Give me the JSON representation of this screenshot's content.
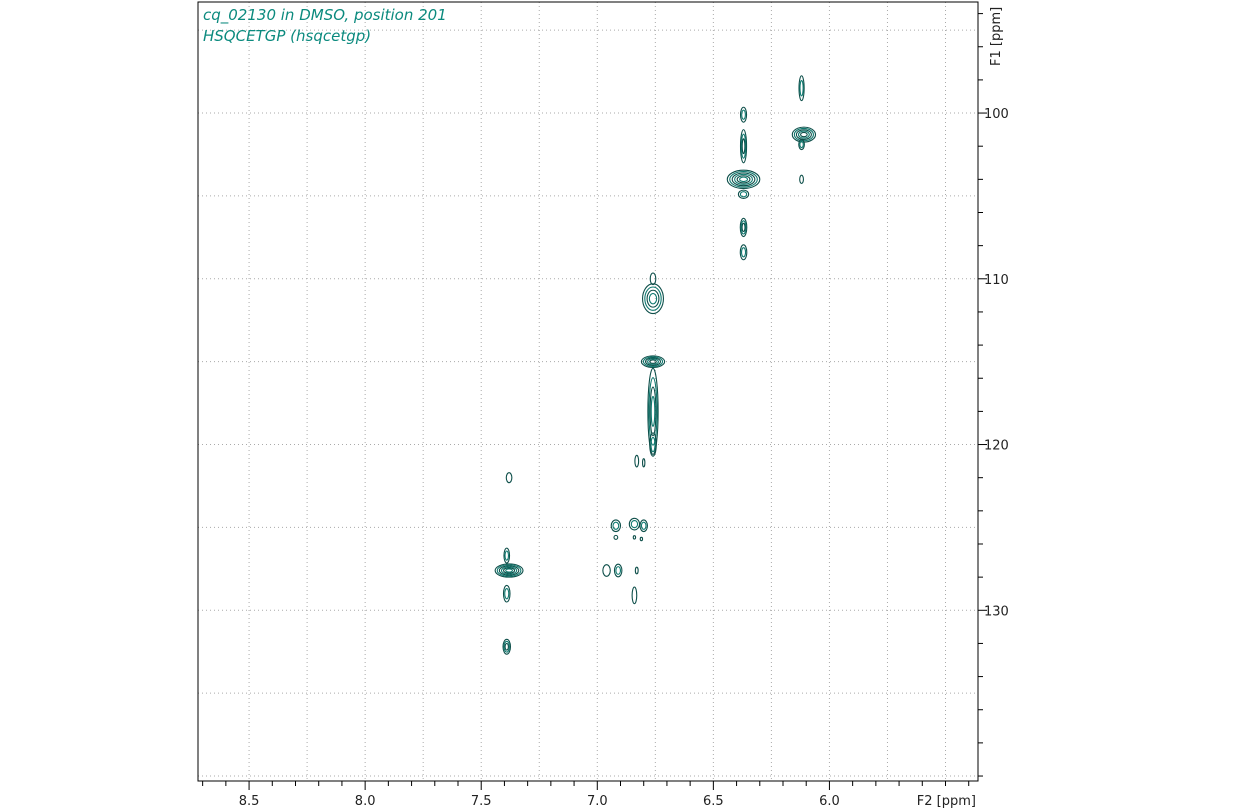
{
  "chart_data": {
    "type": "contour",
    "title": "cq_02130 in DMSO, position 201",
    "subtitle": "HSQCETGP (hsqcetgp)",
    "xlabel": "F2 [ppm]",
    "ylabel": "F1 [ppm]",
    "xlim": [
      8.72,
      5.36
    ],
    "ylim": [
      93.3,
      140.3
    ],
    "x_ticks": [
      8.5,
      8.0,
      7.5,
      7.0,
      6.5,
      6.0
    ],
    "x_tick_labels": [
      "8.5",
      "8.0",
      "7.5",
      "7.0",
      "6.5",
      "6.0"
    ],
    "y_ticks": [
      100,
      110,
      120,
      130
    ],
    "y_tick_labels": [
      "100",
      "110",
      "120",
      "130"
    ],
    "grid": true,
    "colors": {
      "contour_dark": "#0e4f4a",
      "contour_mid": "#0f7a70",
      "title": "#0b8a7e",
      "grid": "#aaaaaa"
    },
    "peaks": [
      {
        "x": 6.12,
        "y": 98.5,
        "w": 0.011,
        "h": 0.75,
        "n": 2
      },
      {
        "x": 6.11,
        "y": 101.3,
        "w": 0.05,
        "h": 0.45,
        "n": 5
      },
      {
        "x": 6.12,
        "y": 101.9,
        "w": 0.012,
        "h": 0.3,
        "n": 2
      },
      {
        "x": 6.12,
        "y": 104.0,
        "w": 0.008,
        "h": 0.25,
        "n": 1
      },
      {
        "x": 6.37,
        "y": 100.1,
        "w": 0.013,
        "h": 0.45,
        "n": 2
      },
      {
        "x": 6.37,
        "y": 102.0,
        "w": 0.013,
        "h": 1.0,
        "n": 3
      },
      {
        "x": 6.37,
        "y": 104.0,
        "w": 0.07,
        "h": 0.55,
        "n": 6
      },
      {
        "x": 6.37,
        "y": 104.9,
        "w": 0.022,
        "h": 0.25,
        "n": 2
      },
      {
        "x": 6.37,
        "y": 106.9,
        "w": 0.014,
        "h": 0.55,
        "n": 3
      },
      {
        "x": 6.37,
        "y": 108.4,
        "w": 0.014,
        "h": 0.45,
        "n": 2
      },
      {
        "x": 6.76,
        "y": 110.0,
        "w": 0.012,
        "h": 0.35,
        "n": 1
      },
      {
        "x": 6.76,
        "y": 111.2,
        "w": 0.045,
        "h": 0.9,
        "n": 4
      },
      {
        "x": 6.76,
        "y": 115.0,
        "w": 0.05,
        "h": 0.35,
        "n": 5
      },
      {
        "x": 6.76,
        "y": 118.0,
        "w": 0.022,
        "h": 2.6,
        "n": 4
      },
      {
        "x": 6.76,
        "y": 120.0,
        "w": 0.014,
        "h": 0.7,
        "n": 2
      },
      {
        "x": 6.83,
        "y": 121.0,
        "w": 0.008,
        "h": 0.35,
        "n": 1
      },
      {
        "x": 6.8,
        "y": 121.1,
        "w": 0.005,
        "h": 0.25,
        "n": 1
      },
      {
        "x": 7.38,
        "y": 122.0,
        "w": 0.012,
        "h": 0.3,
        "n": 1
      },
      {
        "x": 6.92,
        "y": 124.9,
        "w": 0.02,
        "h": 0.35,
        "n": 2
      },
      {
        "x": 6.84,
        "y": 124.8,
        "w": 0.022,
        "h": 0.35,
        "n": 2
      },
      {
        "x": 6.8,
        "y": 124.9,
        "w": 0.016,
        "h": 0.35,
        "n": 2
      },
      {
        "x": 6.92,
        "y": 125.6,
        "w": 0.008,
        "h": 0.12,
        "n": 1
      },
      {
        "x": 6.84,
        "y": 125.6,
        "w": 0.005,
        "h": 0.1,
        "n": 1
      },
      {
        "x": 6.81,
        "y": 125.7,
        "w": 0.005,
        "h": 0.1,
        "n": 1
      },
      {
        "x": 6.96,
        "y": 127.6,
        "w": 0.016,
        "h": 0.35,
        "n": 1
      },
      {
        "x": 6.91,
        "y": 127.6,
        "w": 0.016,
        "h": 0.38,
        "n": 2
      },
      {
        "x": 6.83,
        "y": 127.6,
        "w": 0.006,
        "h": 0.2,
        "n": 1
      },
      {
        "x": 6.84,
        "y": 129.1,
        "w": 0.01,
        "h": 0.5,
        "n": 1
      },
      {
        "x": 7.39,
        "y": 126.7,
        "w": 0.012,
        "h": 0.45,
        "n": 2
      },
      {
        "x": 7.38,
        "y": 127.6,
        "w": 0.06,
        "h": 0.4,
        "n": 6
      },
      {
        "x": 7.39,
        "y": 129.0,
        "w": 0.014,
        "h": 0.5,
        "n": 2
      },
      {
        "x": 7.39,
        "y": 132.2,
        "w": 0.016,
        "h": 0.45,
        "n": 3
      }
    ]
  }
}
